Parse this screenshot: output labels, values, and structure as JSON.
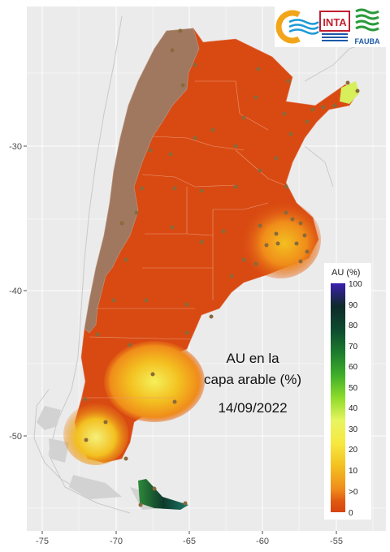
{
  "map": {
    "title_line1": "AU en la",
    "title_line2": "capa arable (%)",
    "date": "14/09/2022",
    "x_ticks": [
      "-75",
      "-70",
      "-65",
      "-60",
      "-55"
    ],
    "y_ticks": [
      "-30",
      "-40",
      "-50"
    ],
    "panel_bg": "#ebebeb",
    "grid_color": "#ffffff"
  },
  "legend": {
    "title": "AU (%)",
    "labels": [
      "100",
      "90",
      "80",
      "70",
      "60",
      "50",
      "40",
      "30",
      "20",
      "10",
      ">0",
      "0"
    ],
    "colors": [
      "#3b1fb0",
      "#0f2a2a",
      "#0d4a2f",
      "#1c7a2e",
      "#3fae2a",
      "#8fdc2a",
      "#e8f560",
      "#f7e840",
      "#f3c020",
      "#f08c1a",
      "#e05a10",
      "#d74410"
    ]
  },
  "logos": {
    "inta": "INTA",
    "fauba": "FAUBA"
  }
}
